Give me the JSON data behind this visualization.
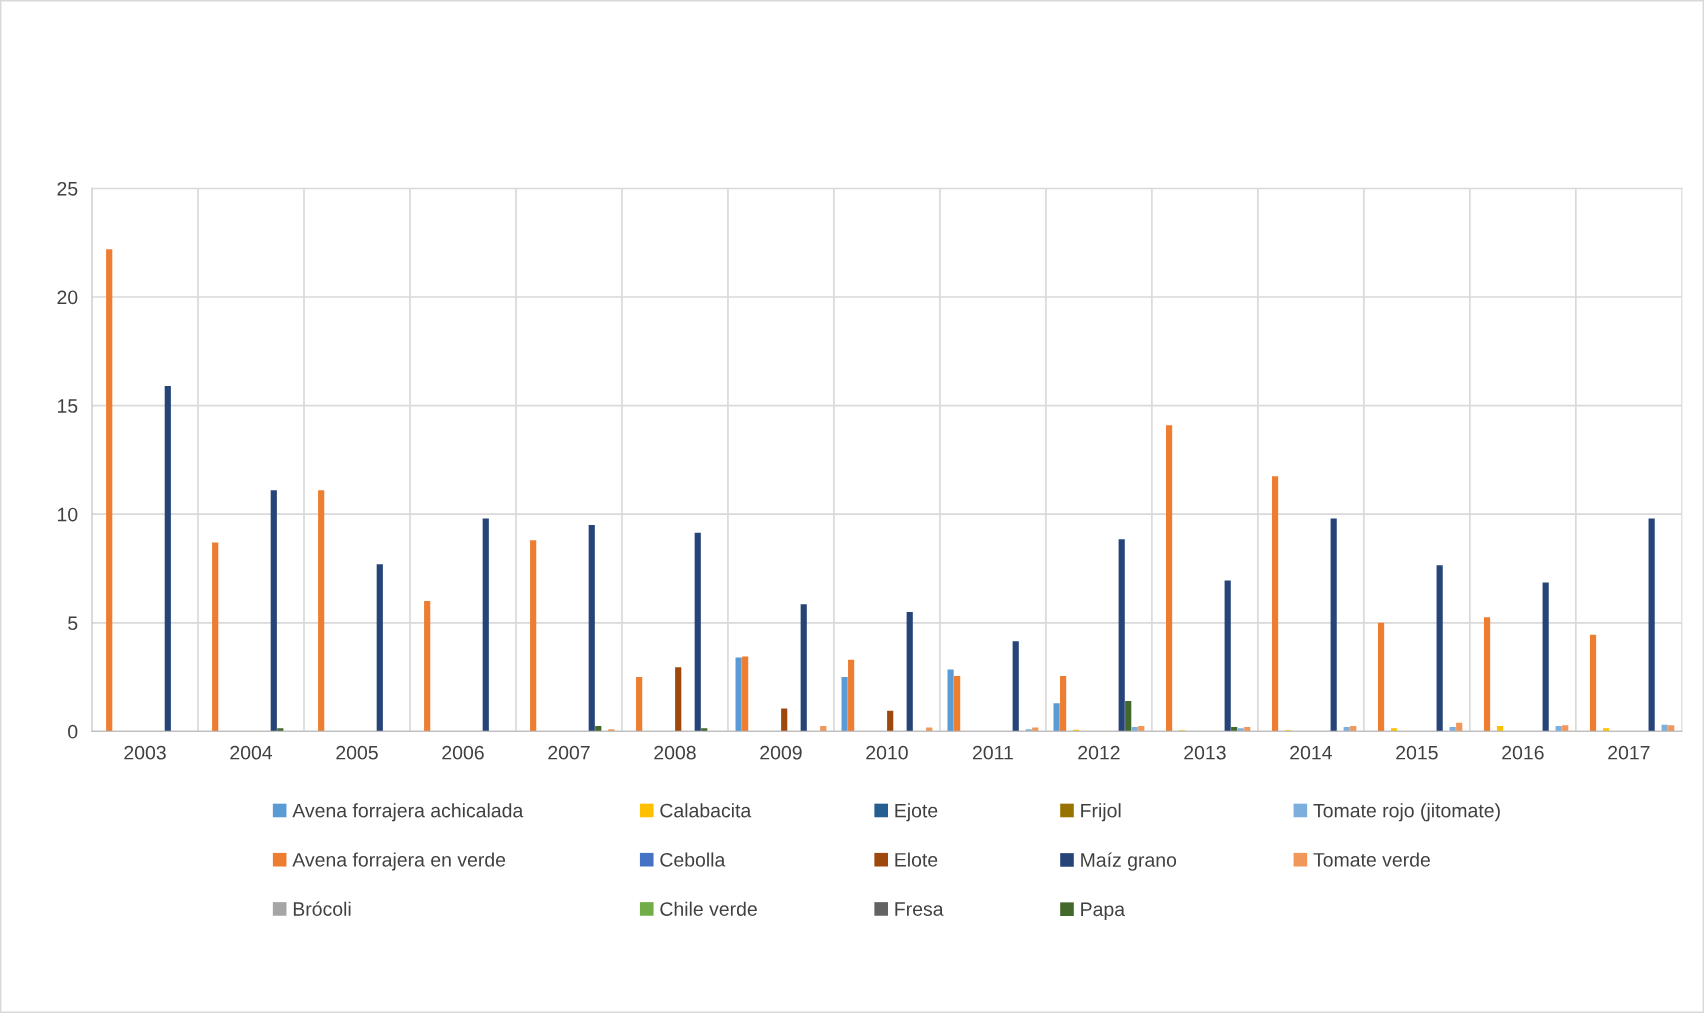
{
  "chart_data": {
    "type": "bar",
    "categories": [
      "2003",
      "2004",
      "2005",
      "2006",
      "2007",
      "2008",
      "2009",
      "2010",
      "2011",
      "2012",
      "2013",
      "2014",
      "2015",
      "2016",
      "2017"
    ],
    "series": [
      {
        "name": "Avena forrajera achicalada",
        "color": "#5b9bd5",
        "values": [
          0,
          0,
          0,
          0,
          0,
          0,
          3.4,
          2.5,
          2.85,
          1.3,
          0,
          0,
          0,
          0,
          0
        ]
      },
      {
        "name": "Avena forrajera en verde",
        "color": "#ed7d31",
        "values": [
          22.2,
          8.7,
          11.1,
          6.0,
          8.8,
          2.5,
          3.45,
          3.3,
          2.55,
          2.55,
          14.1,
          11.75,
          5.0,
          5.25,
          4.45
        ]
      },
      {
        "name": "Brócoli",
        "color": "#a5a5a5",
        "values": [
          0,
          0,
          0,
          0,
          0,
          0,
          0,
          0,
          0,
          0,
          0,
          0,
          0,
          0,
          0
        ]
      },
      {
        "name": "Calabacita",
        "color": "#ffc000",
        "values": [
          0,
          0,
          0,
          0,
          0,
          0,
          0,
          0,
          0,
          0.08,
          0.05,
          0.05,
          0.15,
          0.25,
          0.15
        ]
      },
      {
        "name": "Cebolla",
        "color": "#4472c4",
        "values": [
          0,
          0,
          0,
          0,
          0,
          0,
          0,
          0,
          0,
          0,
          0,
          0,
          0,
          0,
          0
        ]
      },
      {
        "name": "Chile verde",
        "color": "#70ad47",
        "values": [
          0,
          0,
          0,
          0,
          0,
          0,
          0,
          0,
          0,
          0,
          0,
          0,
          0,
          0,
          0
        ]
      },
      {
        "name": "Ejote",
        "color": "#255e91",
        "values": [
          0,
          0,
          0,
          0,
          0,
          0,
          0,
          0,
          0,
          0,
          0,
          0,
          0,
          0,
          0
        ]
      },
      {
        "name": "Elote",
        "color": "#9e480e",
        "values": [
          0,
          0,
          0,
          0,
          0,
          2.95,
          1.05,
          0.95,
          0,
          0,
          0,
          0,
          0,
          0,
          0
        ]
      },
      {
        "name": "Fresa",
        "color": "#636363",
        "values": [
          0,
          0,
          0,
          0,
          0,
          0,
          0,
          0,
          0,
          0,
          0,
          0,
          0,
          0,
          0
        ]
      },
      {
        "name": "Frijol",
        "color": "#997300",
        "values": [
          0,
          0,
          0,
          0,
          0,
          0,
          0,
          0,
          0,
          0,
          0,
          0,
          0,
          0,
          0
        ]
      },
      {
        "name": "Maíz grano",
        "color": "#264478",
        "values": [
          15.9,
          11.1,
          7.7,
          9.8,
          9.5,
          9.15,
          5.85,
          5.5,
          4.15,
          8.85,
          6.95,
          9.8,
          7.65,
          6.85,
          9.8
        ]
      },
      {
        "name": "Papa",
        "color": "#43682b",
        "values": [
          0,
          0.15,
          0,
          0,
          0.25,
          0.15,
          0,
          0,
          0,
          1.4,
          0.2,
          0,
          0,
          0,
          0
        ]
      },
      {
        "name": "Tomate rojo (jitomate)",
        "color": "#7cafdd",
        "values": [
          0,
          0,
          0,
          0,
          0,
          0,
          0,
          0,
          0.1,
          0.2,
          0.15,
          0.2,
          0.2,
          0.25,
          0.3
        ]
      },
      {
        "name": "Tomate verde",
        "color": "#f1975a",
        "values": [
          0,
          0,
          0,
          0,
          0.1,
          0,
          0.25,
          0.18,
          0.18,
          0.25,
          0.2,
          0.25,
          0.4,
          0.28,
          0.28
        ]
      }
    ],
    "ylim": [
      0,
      25
    ],
    "yticks": [
      0,
      5,
      10,
      15,
      20,
      25
    ],
    "grid": true,
    "legend": "bottom"
  }
}
